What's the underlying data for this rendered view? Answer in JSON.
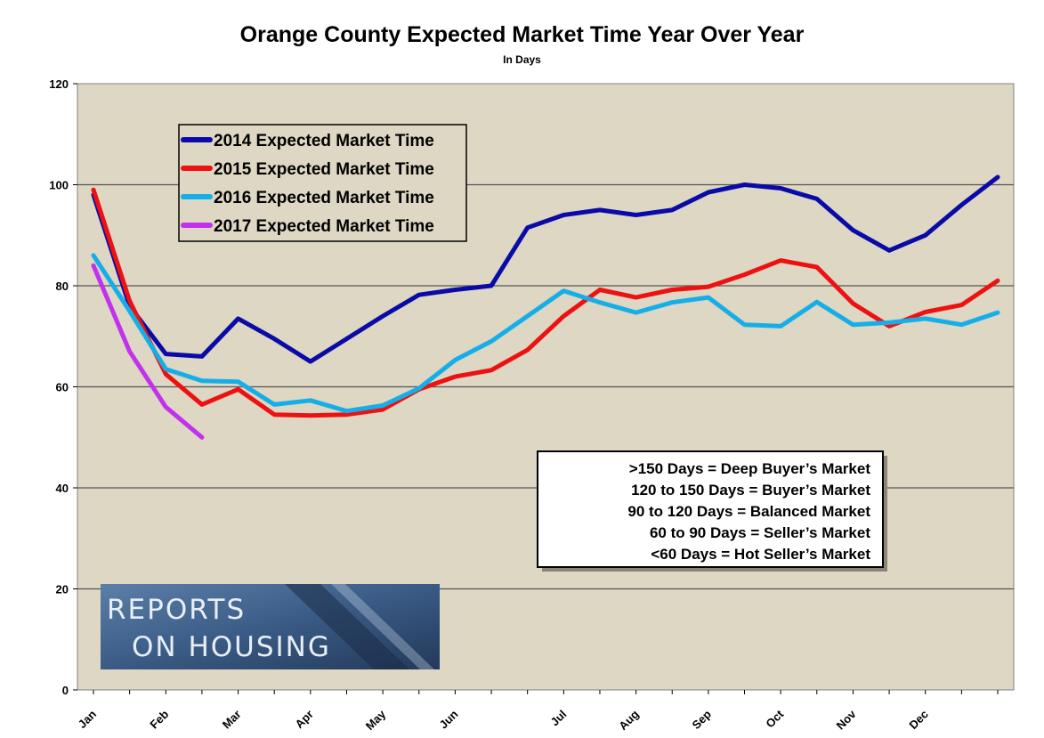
{
  "chart_data": {
    "type": "line",
    "title": "Orange County Expected Market Time Year Over Year",
    "subtitle": "In Days",
    "xlabel": "",
    "ylabel": "",
    "ylim": [
      0,
      120
    ],
    "yticks": [
      0,
      20,
      40,
      60,
      80,
      100,
      120
    ],
    "month_labels": [
      {
        "label": "Jan",
        "x": 0
      },
      {
        "label": "Feb",
        "x": 2
      },
      {
        "label": "Mar",
        "x": 4
      },
      {
        "label": "Apr",
        "x": 6
      },
      {
        "label": "May",
        "x": 8
      },
      {
        "label": "Jun",
        "x": 10
      },
      {
        "label": "Jul",
        "x": 13
      },
      {
        "label": "Aug",
        "x": 15
      },
      {
        "label": "Sep",
        "x": 17
      },
      {
        "label": "Oct",
        "x": 19
      },
      {
        "label": "Nov",
        "x": 21
      },
      {
        "label": "Dec",
        "x": 23
      }
    ],
    "x_max": 25,
    "grid": true,
    "legend_position": "top-left",
    "series": [
      {
        "name": "2014 Expected Market Time",
        "color": "#0a0aa8",
        "values": [
          98,
          76,
          66.5,
          66,
          73.5,
          69.5,
          65,
          69.5,
          74,
          78.2,
          79.2,
          80,
          91.5,
          94,
          95,
          94,
          95,
          98.5,
          100,
          99.3,
          97.2,
          91,
          87,
          90,
          96,
          101.5
        ]
      },
      {
        "name": "2015 Expected Market Time",
        "color": "#ee1111",
        "values": [
          99,
          77,
          62.5,
          56.5,
          59.5,
          54.5,
          54.3,
          54.5,
          55.5,
          59.5,
          62,
          63.3,
          67.3,
          74,
          79.2,
          77.7,
          79.2,
          79.8,
          82.2,
          85,
          83.7,
          76.5,
          72,
          74.8,
          76.2,
          81
        ]
      },
      {
        "name": "2016 Expected Market Time",
        "color": "#16aee8",
        "values": [
          86,
          75,
          63.5,
          61.2,
          61,
          56.5,
          57.3,
          55.2,
          56.3,
          59.7,
          65.3,
          69,
          74,
          79,
          76.7,
          74.7,
          76.7,
          77.7,
          72.3,
          72,
          76.8,
          72.3,
          72.7,
          73.5,
          72.3,
          74.7
        ]
      },
      {
        "name": "2017 Expected Market Time",
        "color": "#c232ee",
        "values": [
          84,
          67,
          56,
          50
        ]
      }
    ],
    "info_box": [
      ">150 Days = Deep Buyer’s Market",
      "120 to 150 Days = Buyer’s Market",
      "90 to 120 Days = Balanced Market",
      "60 to 90 Days = Seller’s Market",
      "<60 Days = Hot Seller’s Market"
    ]
  },
  "logo": {
    "line1": "REPORTS",
    "line2": "ON HOUSING"
  },
  "colors": {
    "plot_background": "#ddd7c3",
    "grid": "#555555"
  }
}
